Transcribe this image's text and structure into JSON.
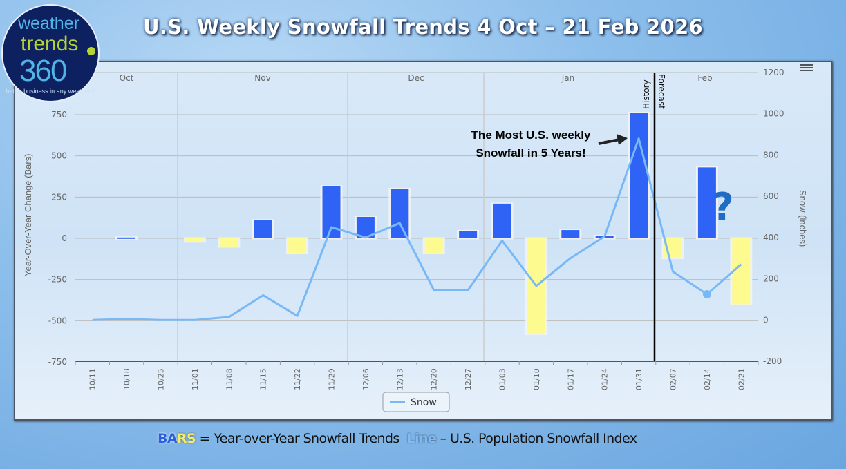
{
  "title": "U.S. Weekly Snowfall Trends 4 Oct – 21 Feb 2026",
  "logo": {
    "line1": "weather",
    "line2": "trends",
    "line3": "360",
    "tagline": "better business in any weather®"
  },
  "caption": {
    "bars_a": "BA",
    "bars_b": "RS",
    "bars_text": " = Year-over-Year Snowfall Trends  ",
    "line_word": "Line",
    "line_text": " – U.S. Population Snowfall Index"
  },
  "chart_data": {
    "type": "bar+line",
    "categories": [
      "10/11",
      "10/18",
      "10/25",
      "11/01",
      "11/08",
      "11/15",
      "11/22",
      "11/29",
      "12/06",
      "12/13",
      "12/20",
      "12/27",
      "01/03",
      "01/10",
      "01/17",
      "01/24",
      "01/31",
      "02/07",
      "02/14",
      "02/21"
    ],
    "months": [
      "Oct",
      "Nov",
      "Dec",
      "Jan",
      "Feb"
    ],
    "series": [
      {
        "name": "Year-Over-Year Change",
        "type": "bar",
        "axis": "left",
        "values": [
          0,
          5,
          0,
          -20,
          -50,
          110,
          -90,
          315,
          130,
          300,
          -90,
          45,
          210,
          -580,
          50,
          15,
          760,
          -120,
          430,
          -400
        ],
        "positive_color": "#2f63f5",
        "negative_color": "#fdfa8f"
      },
      {
        "name": "Snow",
        "type": "line",
        "axis": "right",
        "values": [
          0,
          5,
          0,
          0,
          15,
          120,
          20,
          450,
          400,
          470,
          145,
          145,
          385,
          165,
          300,
          405,
          880,
          235,
          125,
          270
        ],
        "color": "#78b8f7"
      }
    ],
    "ylabel": "Year-Over-Year Change (Bars)",
    "y2label": "Snow (inches)",
    "ylim": [
      -750,
      1000
    ],
    "y2lim": [
      -200,
      1200
    ],
    "yticks": [
      750,
      500,
      250,
      0,
      -250,
      -500,
      -750
    ],
    "y2ticks": [
      1200,
      1000,
      800,
      600,
      400,
      200,
      0,
      -200
    ],
    "legend": {
      "label": "Snow",
      "placement": "bottom-center"
    },
    "annotations": {
      "history": "History",
      "forecast": "Forecast",
      "callout1": "The Most U.S. weekly",
      "callout2": "Snowfall in 5 Years!",
      "question": "?"
    }
  }
}
